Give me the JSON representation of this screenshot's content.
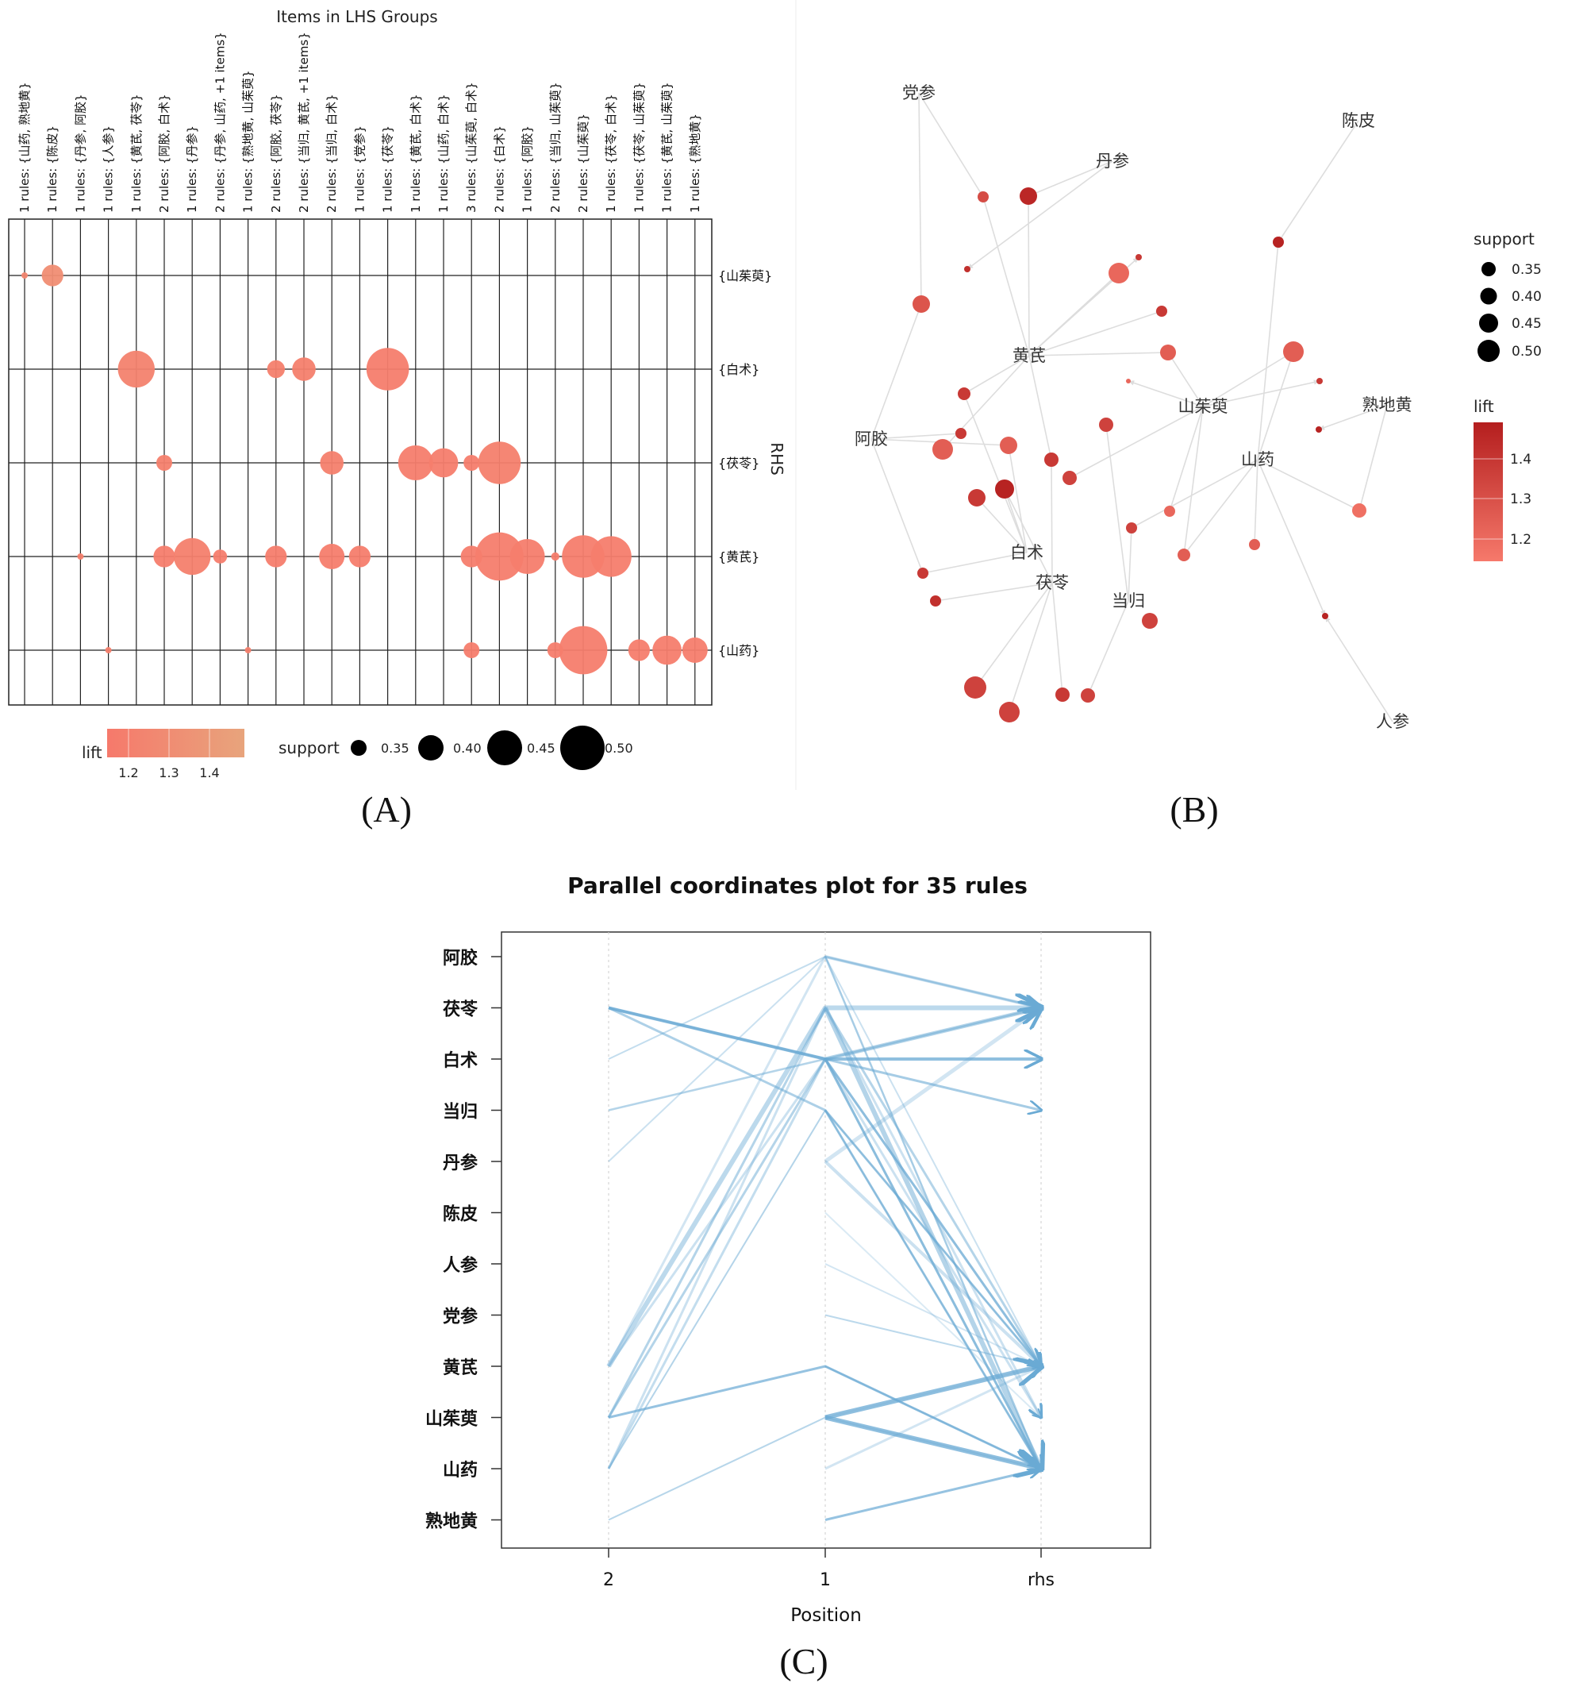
{
  "colors": {
    "lift_low": "#f6796b",
    "lift_high": "#e8a47c",
    "graph_low": "#f6796b",
    "graph_high": "#b41e1e",
    "parallel_line": "#6aaad4",
    "grid": "#000000"
  },
  "panel_labels": {
    "a": "(A)",
    "b": "(B)",
    "c": "(C)"
  },
  "chart_data": [
    {
      "type": "grouped_matrix",
      "title": "Items in LHS Groups",
      "ylabel": "RHS",
      "lhs_groups": [
        "1 rules: {山药, 熟地黄}",
        "1 rules: {陈皮}",
        "1 rules: {丹参, 阿胶}",
        "1 rules: {人参}",
        "1 rules: {黄芪, 茯苓}",
        "2 rules: {阿胶, 白术}",
        "1 rules: {丹参}",
        "2 rules: {丹参, 山药, +1 items}",
        "1 rules: {熟地黄, 山茱萸}",
        "2 rules: {阿胶, 茯苓}",
        "2 rules: {当归, 黄芪, +1 items}",
        "2 rules: {当归, 白术}",
        "1 rules: {党参}",
        "1 rules: {茯苓}",
        "1 rules: {黄芪, 白术}",
        "1 rules: {山药, 白术}",
        "3 rules: {山茱萸, 白术}",
        "2 rules: {白术}",
        "1 rules: {阿胶}",
        "2 rules: {当归, 山茱萸}",
        "2 rules: {山茱萸}",
        "1 rules: {茯苓, 白术}",
        "1 rules: {茯苓, 山茱萸}",
        "1 rules: {黄芪, 山茱萸}",
        "1 rules: {熟地黄}"
      ],
      "rhs_items": [
        "{山茱萸}",
        "{白术}",
        "{茯苓}",
        "{黄芪}",
        "{山药}"
      ],
      "points": [
        {
          "group": 0,
          "rhs": 0,
          "support": 0.3,
          "lift": 1.3
        },
        {
          "group": 1,
          "rhs": 0,
          "support": 0.38,
          "lift": 1.38
        },
        {
          "group": 4,
          "rhs": 1,
          "support": 0.46,
          "lift": 1.25
        },
        {
          "group": 9,
          "rhs": 1,
          "support": 0.36,
          "lift": 1.22
        },
        {
          "group": 10,
          "rhs": 1,
          "support": 0.39,
          "lift": 1.22
        },
        {
          "group": 13,
          "rhs": 1,
          "support": 0.49,
          "lift": 1.2
        },
        {
          "group": 5,
          "rhs": 2,
          "support": 0.35,
          "lift": 1.22
        },
        {
          "group": 11,
          "rhs": 2,
          "support": 0.39,
          "lift": 1.22
        },
        {
          "group": 14,
          "rhs": 2,
          "support": 0.45,
          "lift": 1.2
        },
        {
          "group": 15,
          "rhs": 2,
          "support": 0.42,
          "lift": 1.2
        },
        {
          "group": 16,
          "rhs": 2,
          "support": 0.35,
          "lift": 1.2
        },
        {
          "group": 17,
          "rhs": 2,
          "support": 0.49,
          "lift": 1.22
        },
        {
          "group": 2,
          "rhs": 3,
          "support": 0.3,
          "lift": 1.22
        },
        {
          "group": 5,
          "rhs": 3,
          "support": 0.38,
          "lift": 1.2
        },
        {
          "group": 6,
          "rhs": 3,
          "support": 0.46,
          "lift": 1.22
        },
        {
          "group": 7,
          "rhs": 3,
          "support": 0.34,
          "lift": 1.2
        },
        {
          "group": 9,
          "rhs": 3,
          "support": 0.38,
          "lift": 1.2
        },
        {
          "group": 11,
          "rhs": 3,
          "support": 0.4,
          "lift": 1.2
        },
        {
          "group": 12,
          "rhs": 3,
          "support": 0.38,
          "lift": 1.2
        },
        {
          "group": 16,
          "rhs": 3,
          "support": 0.38,
          "lift": 1.2
        },
        {
          "group": 17,
          "rhs": 3,
          "support": 0.52,
          "lift": 1.2
        },
        {
          "group": 18,
          "rhs": 3,
          "support": 0.45,
          "lift": 1.2
        },
        {
          "group": 19,
          "rhs": 3,
          "support": 0.31,
          "lift": 1.2
        },
        {
          "group": 20,
          "rhs": 3,
          "support": 0.49,
          "lift": 1.2
        },
        {
          "group": 21,
          "rhs": 3,
          "support": 0.48,
          "lift": 1.2
        },
        {
          "group": 3,
          "rhs": 4,
          "support": 0.3,
          "lift": 1.22
        },
        {
          "group": 8,
          "rhs": 4,
          "support": 0.3,
          "lift": 1.22
        },
        {
          "group": 16,
          "rhs": 4,
          "support": 0.35,
          "lift": 1.2
        },
        {
          "group": 19,
          "rhs": 4,
          "support": 0.35,
          "lift": 1.2
        },
        {
          "group": 20,
          "rhs": 4,
          "support": 0.52,
          "lift": 1.2
        },
        {
          "group": 22,
          "rhs": 4,
          "support": 0.38,
          "lift": 1.2
        },
        {
          "group": 23,
          "rhs": 4,
          "support": 0.42,
          "lift": 1.2
        },
        {
          "group": 24,
          "rhs": 4,
          "support": 0.4,
          "lift": 1.2
        }
      ],
      "legend": {
        "lift_title": "lift",
        "lift_ticks": [
          "1.2",
          "1.3",
          "1.4"
        ],
        "support_title": "support",
        "support_values": [
          0.35,
          0.4,
          0.45,
          0.5
        ],
        "support_labels": [
          "0.35",
          "0.40",
          "0.45",
          "0.50"
        ]
      }
    },
    {
      "type": "network",
      "items": [
        "党参",
        "丹参",
        "陈皮",
        "黄芪",
        "山茱萸",
        "熟地黄",
        "阿胶",
        "山药",
        "白术",
        "茯苓",
        "当归",
        "人参"
      ],
      "legend": {
        "support_title": "support",
        "support_labels": [
          "0.35",
          "0.40",
          "0.45",
          "0.50"
        ],
        "lift_title": "lift",
        "lift_ticks": [
          "1.4",
          "1.3",
          "1.2"
        ]
      }
    },
    {
      "type": "parallel_coordinates",
      "title": "Parallel coordinates plot for 35 rules",
      "xlabel": "Position",
      "x_ticks": [
        "2",
        "1",
        "rhs"
      ],
      "y_items": [
        "阿胶",
        "茯苓",
        "白术",
        "当归",
        "丹参",
        "陈皮",
        "人参",
        "党参",
        "黄芪",
        "山茱萸",
        "山药",
        "熟地黄"
      ]
    }
  ]
}
